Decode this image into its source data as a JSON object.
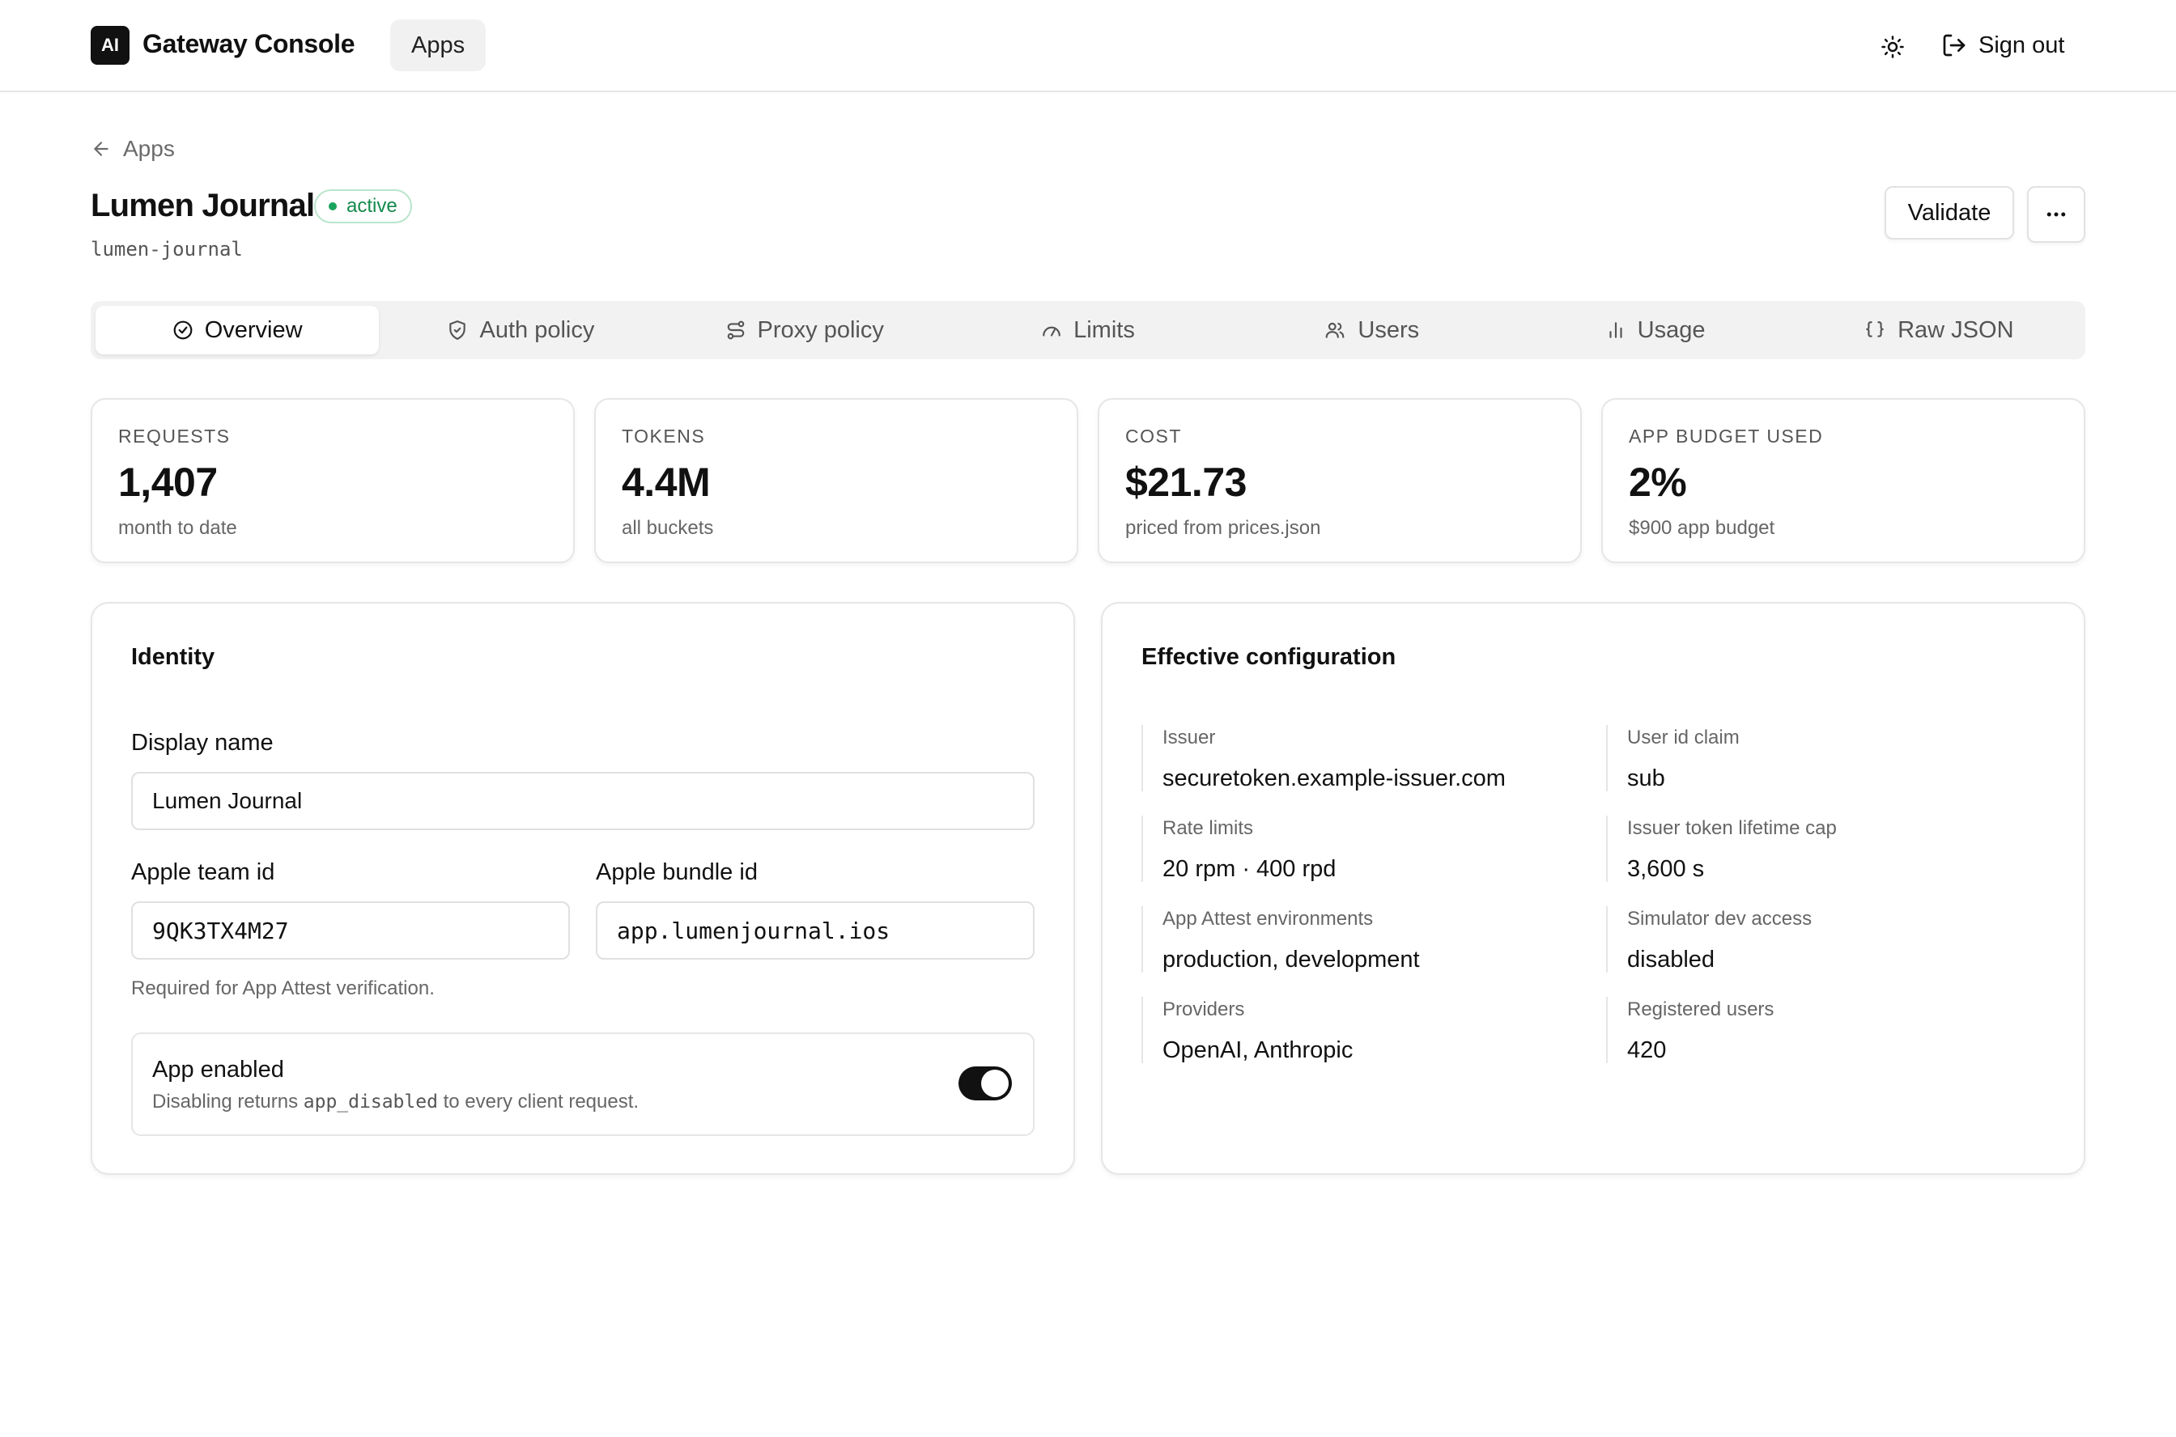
{
  "header": {
    "logo_text": "AI",
    "brand": "Gateway Console",
    "nav_apps": "Apps",
    "signout_label": "Sign out"
  },
  "breadcrumb": {
    "label": "Apps"
  },
  "app": {
    "name": "Lumen Journal",
    "status": "active",
    "slug": "lumen-journal",
    "validate_label": "Validate"
  },
  "tabs": [
    {
      "label": "Overview",
      "icon": "check-circle-icon"
    },
    {
      "label": "Auth policy",
      "icon": "shield-check-icon"
    },
    {
      "label": "Proxy policy",
      "icon": "route-icon"
    },
    {
      "label": "Limits",
      "icon": "gauge-icon"
    },
    {
      "label": "Users",
      "icon": "users-icon"
    },
    {
      "label": "Usage",
      "icon": "bar-chart-icon"
    },
    {
      "label": "Raw JSON",
      "icon": "braces-icon"
    }
  ],
  "stats": [
    {
      "label": "REQUESTS",
      "value": "1,407",
      "sub": "month to date"
    },
    {
      "label": "TOKENS",
      "value": "4.4M",
      "sub": "all buckets"
    },
    {
      "label": "COST",
      "value": "$21.73",
      "sub": "priced from prices.json"
    },
    {
      "label": "APP BUDGET USED",
      "value": "2%",
      "sub": "$900 app budget"
    }
  ],
  "identity": {
    "title": "Identity",
    "display_name_label": "Display name",
    "display_name_value": "Lumen Journal",
    "team_id_label": "Apple team id",
    "team_id_value": "9QK3TX4M27",
    "bundle_id_label": "Apple bundle id",
    "bundle_id_value": "app.lumenjournal.ios",
    "hint": "Required for App Attest verification.",
    "toggle_title": "App enabled",
    "toggle_desc_prefix": "Disabling returns",
    "toggle_desc_code": "app_disabled",
    "toggle_desc_suffix": "to every client request.",
    "enabled": true
  },
  "config": {
    "title": "Effective configuration",
    "items": [
      {
        "label": "Issuer",
        "value": "securetoken.example-issuer.com"
      },
      {
        "label": "User id claim",
        "value": "sub"
      },
      {
        "label": "Rate limits",
        "value": "20 rpm · 400 rpd"
      },
      {
        "label": "Issuer token lifetime cap",
        "value": "3,600 s"
      },
      {
        "label": "App Attest environments",
        "value": "production, development"
      },
      {
        "label": "Simulator dev access",
        "value": "disabled"
      },
      {
        "label": "Providers",
        "value": "OpenAI, Anthropic"
      },
      {
        "label": "Registered users",
        "value": "420"
      }
    ]
  }
}
